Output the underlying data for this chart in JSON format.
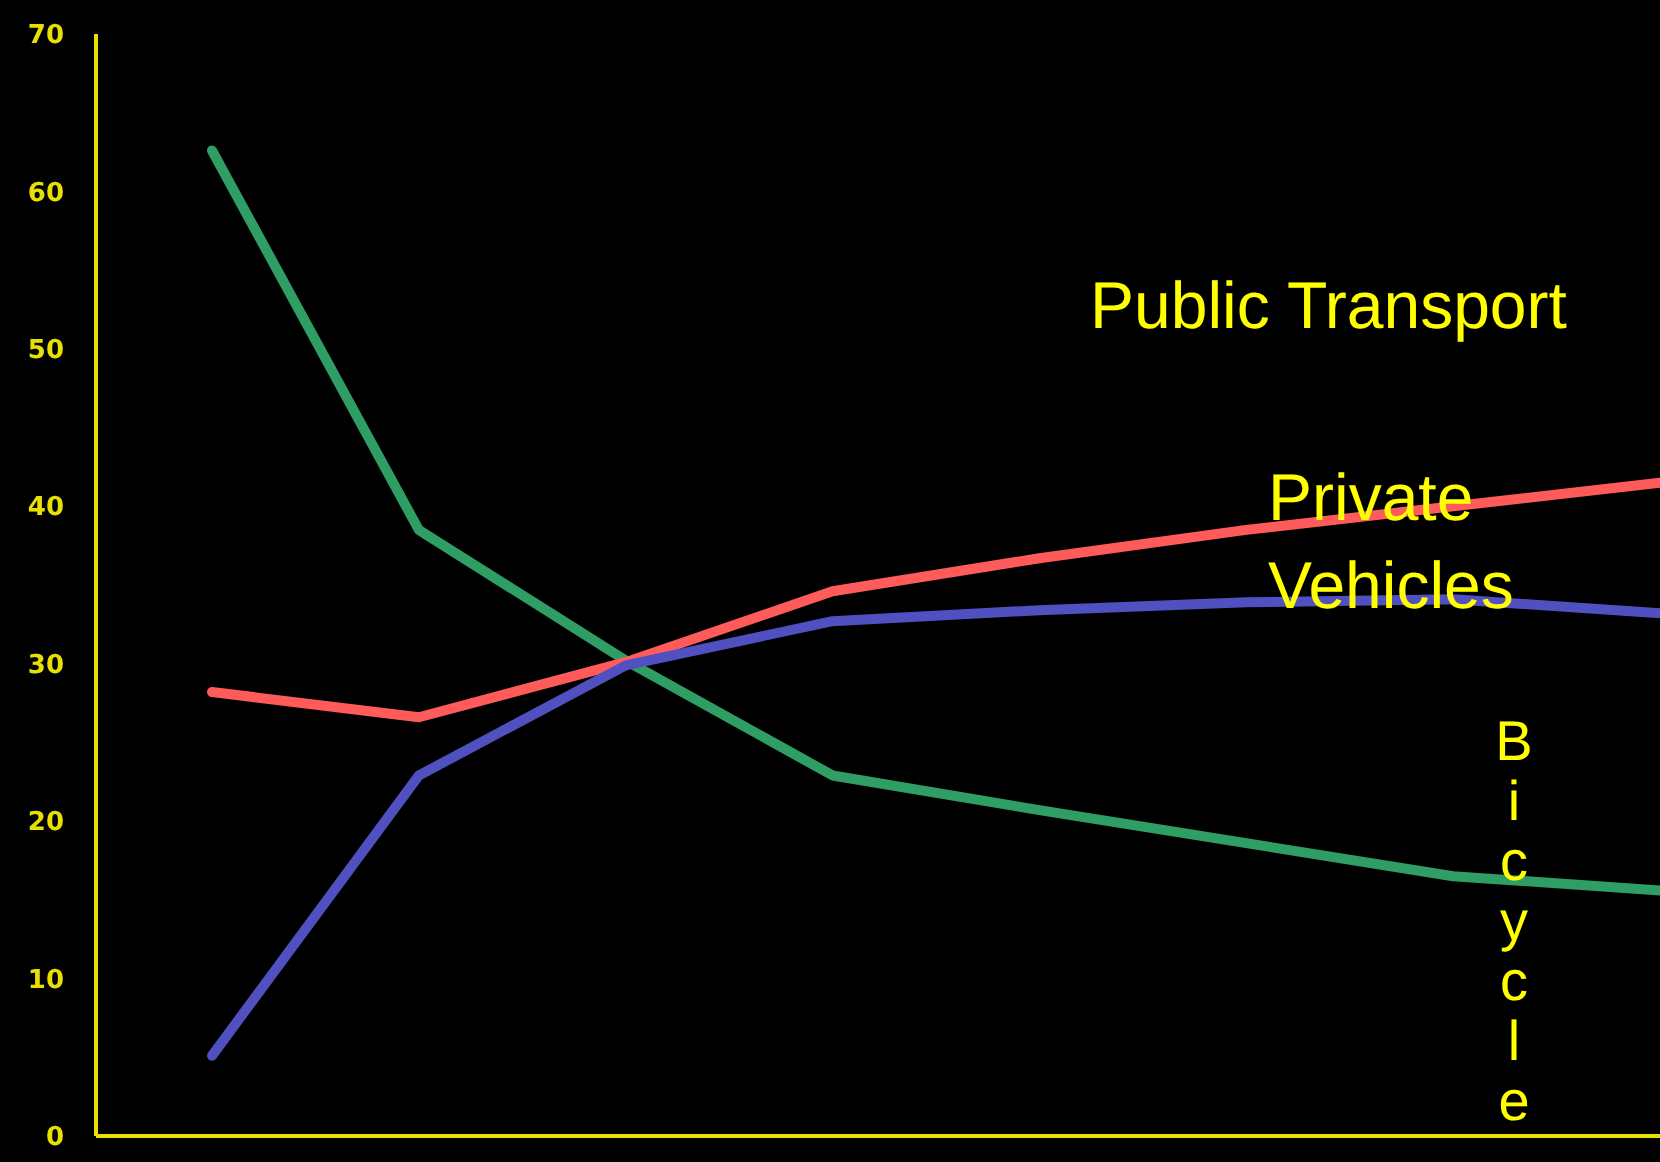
{
  "chart_data": {
    "type": "line",
    "categories": [
      null,
      null,
      null,
      null,
      null,
      null,
      null,
      null
    ],
    "series": [
      {
        "color": "#2e9e64",
        "values": [
          62.6,
          38.5,
          30.2,
          22.9,
          20.7,
          18.6,
          16.5,
          15.6
        ]
      },
      {
        "color": "#ff5b5b",
        "values": [
          28.2,
          26.6,
          30.1,
          34.6,
          36.7,
          38.5,
          40.0,
          41.5
        ]
      },
      {
        "color": "#5050c0",
        "values": [
          5.1,
          22.9,
          29.9,
          32.7,
          33.4,
          33.9,
          34.1,
          33.2
        ]
      }
    ],
    "ylim": [
      0,
      70
    ],
    "yticks": [
      0,
      10,
      20,
      30,
      40,
      50,
      60,
      70
    ],
    "grid": false,
    "marker": "none",
    "line_style": "solid",
    "annotations": [
      "Public Transport",
      "Private Vehicles",
      "Bicycle"
    ]
  }
}
